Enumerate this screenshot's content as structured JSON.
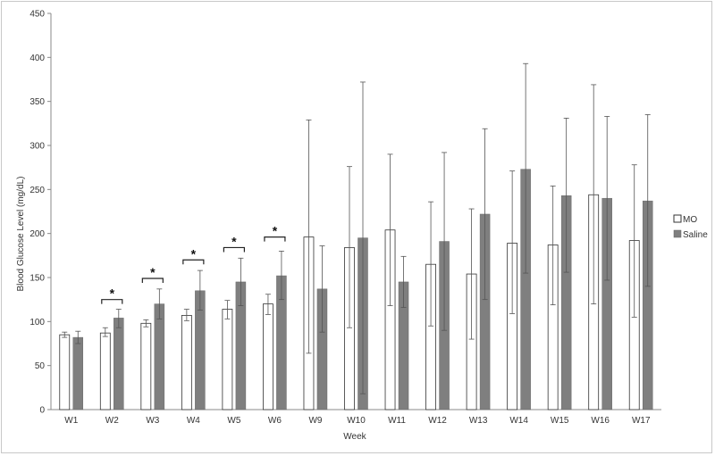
{
  "chart_data": {
    "type": "bar",
    "xlabel": "Week",
    "ylabel": "Blood Glucose Level  (mg/dL)",
    "ylim": [
      0,
      450
    ],
    "yticks": [
      0,
      50,
      100,
      150,
      200,
      250,
      300,
      350,
      400,
      450
    ],
    "grid": false,
    "legend_position": "right",
    "categories": [
      "W1",
      "W2",
      "W3",
      "W4",
      "W5",
      "W6",
      "W9",
      "W10",
      "W11",
      "W12",
      "W13",
      "W14",
      "W15",
      "W16",
      "W17"
    ],
    "series": [
      {
        "name": "MO",
        "color": "#ffffff",
        "values": [
          85,
          87,
          98,
          107,
          114,
          120,
          196,
          184,
          204,
          165,
          154,
          189,
          187,
          244,
          192
        ],
        "error_high": [
          88,
          93,
          102,
          114,
          124,
          131,
          329,
          276,
          290,
          236,
          228,
          271,
          254,
          369,
          278
        ],
        "error_low": [
          82,
          83,
          94,
          101,
          103,
          108,
          64,
          93,
          118,
          95,
          80,
          109,
          119,
          120,
          105
        ]
      },
      {
        "name": "Saline",
        "color": "#7f7f7f",
        "values": [
          82,
          104,
          120,
          135,
          145,
          152,
          137,
          195,
          145,
          191,
          222,
          273,
          243,
          240,
          237
        ],
        "error_high": [
          89,
          114,
          137,
          158,
          172,
          180,
          186,
          372,
          174,
          292,
          319,
          393,
          331,
          333,
          335
        ],
        "error_low": [
          75,
          93,
          103,
          113,
          118,
          125,
          88,
          18,
          116,
          90,
          125,
          155,
          156,
          147,
          140
        ]
      }
    ],
    "annotations": [
      {
        "text": "*",
        "category": "W2",
        "y": 125
      },
      {
        "text": "*",
        "category": "W3",
        "y": 149
      },
      {
        "text": "*",
        "category": "W4",
        "y": 170
      },
      {
        "text": "*",
        "category": "W5",
        "y": 184
      },
      {
        "text": "*",
        "category": "W6",
        "y": 196
      }
    ]
  }
}
